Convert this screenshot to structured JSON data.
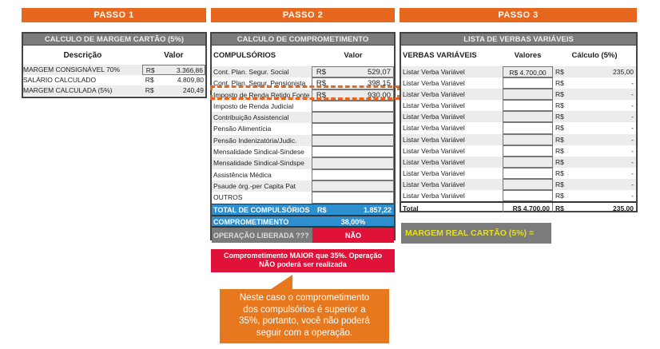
{
  "steps": [
    "PASSO 1",
    "PASSO 2",
    "PASSO 3"
  ],
  "step1": {
    "title": "CALCULO DE MARGEM CARTÃO (5%)",
    "col_desc": "Descrição",
    "col_val": "Valor",
    "rows": [
      {
        "label": "MARGEM CONSIGNÁVEL 70%",
        "cur": "R$",
        "value": "3.366,86"
      },
      {
        "label": "SALÁRIO CALCULADO",
        "cur": "R$",
        "value": "4.809,80"
      },
      {
        "label": "MARGEM CALCULADA (5%)",
        "cur": "R$",
        "value": "240,49"
      }
    ]
  },
  "step2": {
    "title": "CALCULO DE COMPROMETIMENTO",
    "col_desc": "COMPULSÓRIOS",
    "col_val": "Valor",
    "rows": [
      {
        "label": "Cont. Plan. Segur. Social",
        "cur": "R$",
        "value": "529,07"
      },
      {
        "label": "Cont. Plan. Segur. Pensionista",
        "cur": "R$",
        "value": "398,15"
      },
      {
        "label": "Imposto de Renda Retido Fonte",
        "cur": "R$",
        "value": "930,00"
      },
      {
        "label": "Imposto de Renda Judicial",
        "cur": "",
        "value": ""
      },
      {
        "label": "Contribuição Assistencial",
        "cur": "",
        "value": ""
      },
      {
        "label": "Pensão Alimentícia",
        "cur": "",
        "value": ""
      },
      {
        "label": "Pensão Indenizatória/Judic.",
        "cur": "",
        "value": ""
      },
      {
        "label": "Mensalidade Sindical-Sindese",
        "cur": "",
        "value": ""
      },
      {
        "label": "Mensalidade Sindical-Sindspe",
        "cur": "",
        "value": ""
      },
      {
        "label": "Assistência Médica",
        "cur": "",
        "value": ""
      },
      {
        "label": "Psaude órg.-per Capita Pat",
        "cur": "",
        "value": ""
      },
      {
        "label": "OUTROS",
        "cur": "",
        "value": ""
      }
    ],
    "total_label": "TOTAL DE COMPULSÓRIOS",
    "total_cur": "R$",
    "total_value": "1.857,22",
    "comp_label": "COMPROMETIMENTO",
    "comp_value": "38,00%",
    "op_label": "OPERAÇÃO LIBERADA ???",
    "op_value": "NÃO",
    "warning": "Comprometimento MAIOR que 35%. Operação NÃO poderá ser realizada",
    "callout": "Neste caso o comprometimento dos compulsórios é superior a 35%, portanto, você não poderá seguir com a operação."
  },
  "step3": {
    "title": "LISTA DE VERBAS VARIÁVEIS",
    "col_desc": "VERBAS VARIÁVEIS",
    "col_val": "Valores",
    "col_calc": "Cálculo (5%)",
    "rows": [
      {
        "label": "Listar Verba Variável",
        "value": "R$  4.700,00",
        "cur": "R$",
        "calc": "235,00"
      },
      {
        "label": "Listar Verba Variável",
        "value": "",
        "cur": "R$",
        "calc": "-"
      },
      {
        "label": "Listar Verba Variável",
        "value": "",
        "cur": "R$",
        "calc": "-"
      },
      {
        "label": "Listar Verba Variável",
        "value": "",
        "cur": "R$",
        "calc": "-"
      },
      {
        "label": "Listar Verba Variável",
        "value": "",
        "cur": "R$",
        "calc": "-"
      },
      {
        "label": "Listar Verba Variável",
        "value": "",
        "cur": "R$",
        "calc": "-"
      },
      {
        "label": "Listar Verba Variável",
        "value": "",
        "cur": "R$",
        "calc": "-"
      },
      {
        "label": "Listar Verba Variável",
        "value": "",
        "cur": "R$",
        "calc": "-"
      },
      {
        "label": "Listar Verba Variável",
        "value": "",
        "cur": "R$",
        "calc": "-"
      },
      {
        "label": "Listar Verba Variável",
        "value": "",
        "cur": "R$",
        "calc": "-"
      },
      {
        "label": "Listar Verba Variável",
        "value": "",
        "cur": "R$",
        "calc": "-"
      },
      {
        "label": "Listar Verba Variável",
        "value": "",
        "cur": "R$",
        "calc": "-"
      }
    ],
    "total_label": "Total",
    "total_value": "R$  4.700,00",
    "total_cur": "R$",
    "total_calc": "235,00",
    "margem_real": "MARGEM REAL CARTÃO (5%) ="
  },
  "colors": {
    "orange": "#e8671e",
    "gray_header": "#7b7b7b",
    "blue": "#2e8fcf",
    "red": "#e0123a",
    "yellow": "#e6e020"
  }
}
